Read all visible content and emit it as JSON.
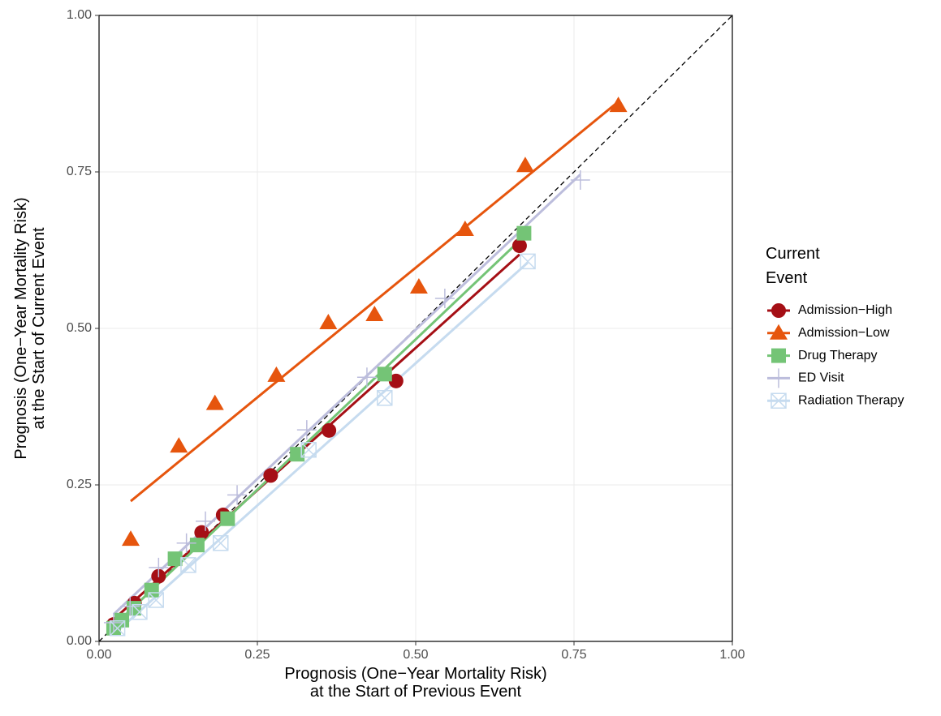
{
  "chart_data": {
    "type": "scatter",
    "x_label": "Prognosis (One−Year Mortality Risk)\nat the Start of Previous Event",
    "y_label": "Prognosis (One−Year Mortality Risk)\nat the Start of Current Event",
    "legend_title": "Current\nEvent",
    "legend": "right",
    "grid": true,
    "identity_line": true,
    "xlim": [
      0,
      1
    ],
    "ylim": [
      0,
      1
    ],
    "xticks": [
      {
        "value": 0,
        "label": "0.00"
      },
      0.25,
      {
        "value": 0.5,
        "label": "0.50"
      },
      0.75,
      {
        "value": 1,
        "label": "1.00"
      }
    ],
    "yticks": [
      {
        "value": 0,
        "label": "0.00"
      },
      0.25,
      {
        "value": 0.5,
        "label": "0.50"
      },
      0.75,
      {
        "value": 1,
        "label": "1.00"
      }
    ],
    "series": [
      {
        "name": "Admission−High",
        "color": "#a50f15",
        "marker": "circle",
        "x": [
          0.023,
          0.056,
          0.094,
          0.162,
          0.196,
          0.271,
          0.363,
          0.469,
          0.664
        ],
        "values": [
          0.027,
          0.061,
          0.104,
          0.174,
          0.202,
          0.265,
          0.337,
          0.416,
          0.632
        ]
      },
      {
        "name": "Admission−Low",
        "color": "#e6550d",
        "marker": "triangle",
        "x": [
          0.05,
          0.126,
          0.183,
          0.28,
          0.362,
          0.435,
          0.505,
          0.578,
          0.673,
          0.82
        ],
        "values": [
          0.163,
          0.312,
          0.38,
          0.425,
          0.509,
          0.522,
          0.566,
          0.658,
          0.76,
          0.856
        ]
      },
      {
        "name": "Drug Therapy",
        "color": "#74c476",
        "marker": "square",
        "x": [
          0.023,
          0.036,
          0.055,
          0.083,
          0.12,
          0.155,
          0.203,
          0.313,
          0.451,
          0.671
        ],
        "values": [
          0.021,
          0.034,
          0.053,
          0.082,
          0.132,
          0.154,
          0.196,
          0.299,
          0.427,
          0.652
        ]
      },
      {
        "name": "ED Visit",
        "color": "#bcbddc",
        "marker": "plus",
        "x": [
          0.023,
          0.049,
          0.094,
          0.138,
          0.168,
          0.218,
          0.328,
          0.423,
          0.546,
          0.76
        ],
        "values": [
          0.03,
          0.056,
          0.118,
          0.157,
          0.192,
          0.234,
          0.338,
          0.422,
          0.548,
          0.737
        ]
      },
      {
        "name": "Radiation Therapy",
        "color": "#c6dbef",
        "marker": "boxcross",
        "x": [
          0.029,
          0.064,
          0.09,
          0.141,
          0.192,
          0.331,
          0.451,
          0.677
        ],
        "values": [
          0.021,
          0.047,
          0.066,
          0.122,
          0.157,
          0.306,
          0.389,
          0.607
        ]
      }
    ]
  }
}
